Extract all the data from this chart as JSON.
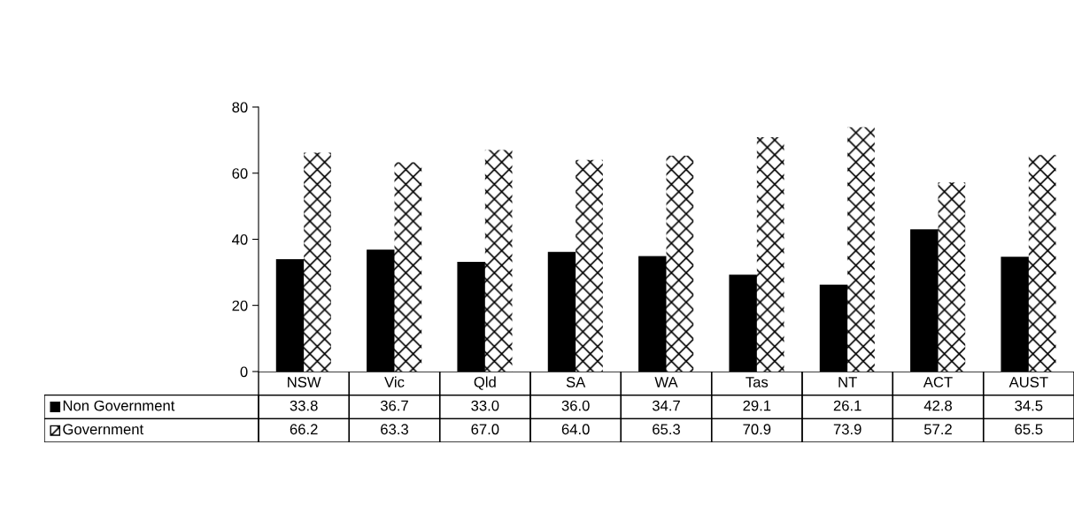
{
  "chart_data": {
    "type": "bar",
    "categories": [
      "NSW",
      "Vic",
      "Qld",
      "SA",
      "WA",
      "Tas",
      "NT",
      "ACT",
      "AUST"
    ],
    "series": [
      {
        "name": "Non Government",
        "color": "#000000",
        "values": [
          33.8,
          36.7,
          33.0,
          36.0,
          34.7,
          29.1,
          26.1,
          42.8,
          34.5
        ],
        "value_labels": [
          "33.8",
          "36.7",
          "33.0",
          "36.0",
          "34.7",
          "29.1",
          "26.1",
          "42.8",
          "34.5"
        ]
      },
      {
        "name": "Government",
        "color": "#ffffff",
        "values": [
          66.2,
          63.3,
          67.0,
          64.0,
          65.3,
          70.9,
          73.9,
          57.2,
          65.5
        ],
        "value_labels": [
          "66.2",
          "63.3",
          "67.0",
          "64.0",
          "65.3",
          "70.9",
          "73.9",
          "57.2",
          "65.5"
        ]
      }
    ],
    "ylim": [
      0,
      80
    ],
    "yticks": [
      0,
      20,
      40,
      60,
      80
    ],
    "grid": false,
    "legend": "bottom left"
  }
}
